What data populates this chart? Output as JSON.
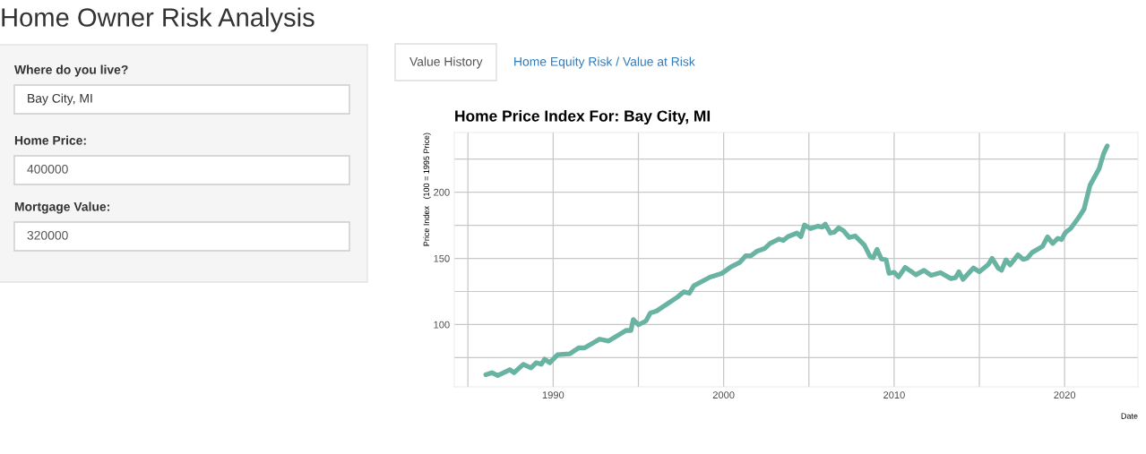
{
  "chart_data": {
    "type": "line",
    "title": "Home Price Index For: Bay City, MI",
    "xlabel": "Date",
    "ylabel": "Price Index   (100 = 1995 Price)",
    "annotations": [
      "Home Owner Risk Analysis",
      "Where do you live?",
      "Bay City, MI",
      "Home Price:",
      "400000",
      "Mortgage Value:",
      "320000",
      "Value History",
      "Home Equity Risk / Value at Risk"
    ],
    "series": [
      {
        "color": "#69b3a2",
        "x": [
          1986.05,
          1986.4,
          1986.75,
          1987.46,
          1987.7,
          1988.25,
          1988.7,
          1989.0,
          1989.3,
          1989.5,
          1989.8,
          1990.26,
          1990.96,
          1991.5,
          1991.84,
          1992.72,
          1993.25,
          1994.3,
          1994.56,
          1994.7,
          1995.0,
          1995.44,
          1995.7,
          1996.05,
          1997.28,
          1997.67,
          1997.98,
          1998.25,
          1999.2,
          1999.9,
          2000.44,
          2000.96,
          2001.3,
          2001.6,
          2001.93,
          2002.4,
          2002.72,
          2003.25,
          2003.5,
          2003.77,
          2004.3,
          2004.53,
          2004.74,
          2005.09,
          2005.53,
          2005.79,
          2005.96,
          2006.26,
          2006.49,
          2006.75,
          2007.02,
          2007.37,
          2007.72,
          2008.25,
          2008.6,
          2008.77,
          2009.0,
          2009.25,
          2009.53,
          2009.7,
          2010.0,
          2010.26,
          2010.65,
          2011.28,
          2011.75,
          2012.16,
          2012.72,
          2013.33,
          2013.6,
          2013.8,
          2014.04,
          2014.65,
          2015.0,
          2015.53,
          2015.75,
          2016.1,
          2016.3,
          2016.56,
          2016.8,
          2017.26,
          2017.56,
          2017.8,
          2018.1,
          2018.7,
          2019.0,
          2019.3,
          2019.6,
          2019.82,
          2020.05,
          2020.35,
          2020.8,
          2021.14,
          2021.49,
          2022.02,
          2022.28,
          2022.5
        ],
        "values": [
          62.2,
          63.7,
          61.5,
          66,
          63.7,
          70,
          67.3,
          71.2,
          70,
          73.9,
          71.2,
          77.3,
          77.9,
          82.4,
          82.4,
          89,
          87.6,
          95.7,
          95.5,
          103.8,
          99.8,
          102.7,
          108.8,
          110.1,
          120.7,
          124.8,
          123.6,
          129.3,
          135.8,
          138.7,
          143.7,
          147.1,
          152,
          152,
          155.2,
          157.4,
          161.3,
          164.6,
          163.5,
          166.4,
          169.1,
          166.4,
          175.2,
          172.5,
          174.3,
          173.6,
          175.9,
          169.1,
          169.8,
          173,
          171,
          165.8,
          166.9,
          160.1,
          151.1,
          150.5,
          156.8,
          149.5,
          148.9,
          138.7,
          139.4,
          136,
          143.2,
          137.6,
          141,
          137.2,
          139.2,
          134.7,
          135.4,
          139.9,
          134.2,
          142.8,
          139.9,
          145.5,
          150,
          142.6,
          141,
          148.9,
          145,
          152.7,
          149.3,
          150,
          154.5,
          159,
          166.2,
          161.3,
          165.1,
          164.2,
          169.6,
          172.5,
          180.4,
          187.2,
          205.2,
          217.6,
          228.8,
          234.9
        ]
      }
    ],
    "xlim": [
      1984.2,
      2024.3
    ],
    "ylim": [
      53,
      245
    ],
    "xticks": [
      {
        "value": 1985,
        "label": null
      },
      1990,
      {
        "value": 1995,
        "label": null
      },
      2000,
      {
        "value": 2005,
        "label": null
      },
      2010,
      {
        "value": 2015,
        "label": null
      },
      2020
    ],
    "yticks": [
      {
        "value": 75,
        "label": null
      },
      100,
      {
        "value": 125,
        "label": null
      },
      150,
      {
        "value": 175,
        "label": null
      },
      200,
      {
        "value": 225,
        "label": null
      }
    ],
    "grid": true,
    "marker": "none",
    "line_style": "solid"
  }
}
